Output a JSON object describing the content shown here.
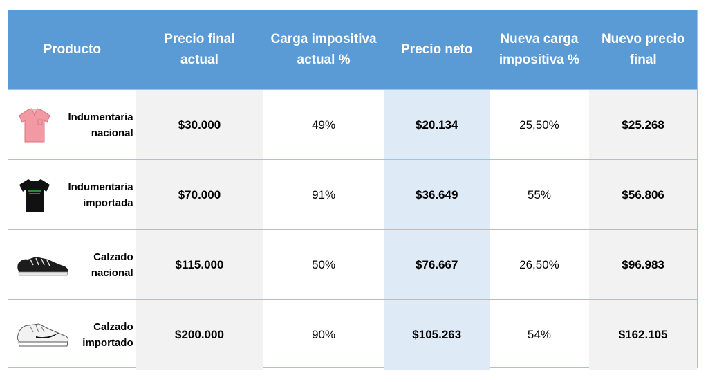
{
  "table": {
    "headers": [
      "Producto",
      "Precio final\nactual",
      "Carga impositiva\nactual %",
      "Precio neto",
      "Nueva carga\nimpositiva %",
      "Nuevo precio\nfinal"
    ],
    "rows": [
      {
        "product": "Indumentaria\nnacional",
        "icon": "pink-polo-shirt-icon",
        "precio_final_actual": "$30.000",
        "carga_actual": "49%",
        "precio_neto": "$20.134",
        "nueva_carga": "25,50%",
        "nuevo_precio": "$25.268"
      },
      {
        "product": "Indumentaria\nimportada",
        "icon": "black-tshirt-icon",
        "precio_final_actual": "$70.000",
        "carga_actual": "91%",
        "precio_neto": "$36.649",
        "nueva_carga": "55%",
        "nuevo_precio": "$56.806"
      },
      {
        "product": "Calzado\nnacional",
        "icon": "black-sneaker-icon",
        "precio_final_actual": "$115.000",
        "carga_actual": "50%",
        "precio_neto": "$76.667",
        "nueva_carga": "26,50%",
        "nuevo_precio": "$96.983"
      },
      {
        "product": "Calzado\nimportado",
        "icon": "white-sneaker-icon",
        "precio_final_actual": "$200.000",
        "carga_actual": "90%",
        "precio_neto": "$105.263",
        "nueva_carga": "54%",
        "nuevo_precio": "$162.105"
      }
    ]
  },
  "colors": {
    "header_bg": "#5b9bd5",
    "grey_column": "#f2f2f2",
    "blue_column": "#deebf7",
    "border": "#9dc3e6"
  }
}
